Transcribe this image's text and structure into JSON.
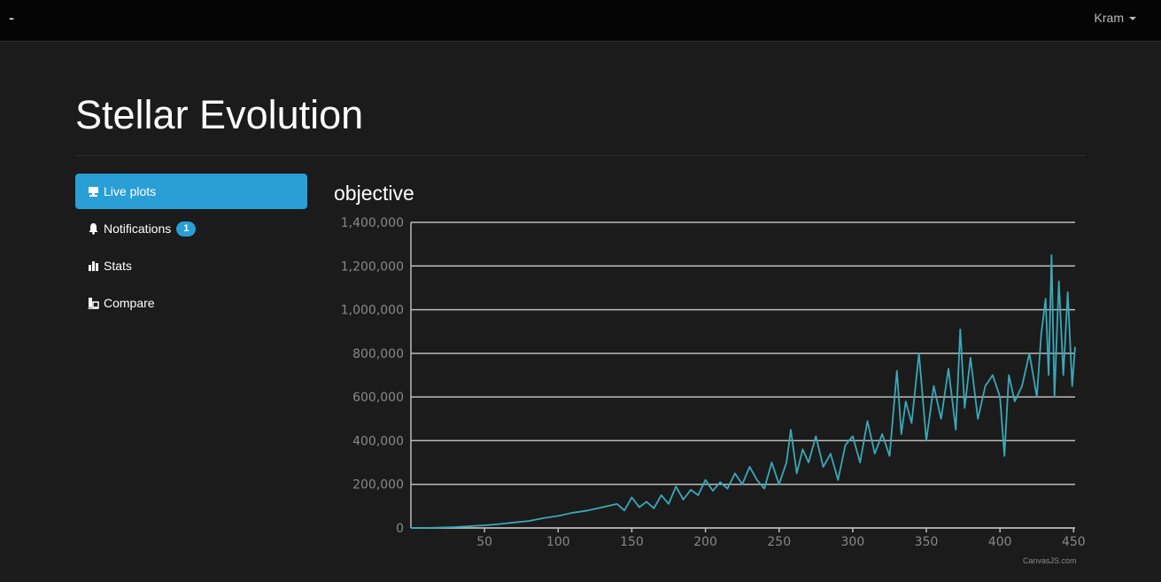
{
  "navbar": {
    "brand": "-",
    "user": "Kram"
  },
  "page": {
    "title": "Stellar Evolution"
  },
  "sidebar": {
    "items": [
      {
        "label": "Live plots",
        "icon": "monitor-icon",
        "active": true
      },
      {
        "label": "Notifications",
        "icon": "bell-icon",
        "badge": "1"
      },
      {
        "label": "Stats",
        "icon": "bar-chart-icon"
      },
      {
        "label": "Compare",
        "icon": "compare-icon"
      }
    ]
  },
  "colors": {
    "accent": "#2a9fd6",
    "series": "#3aa8b8",
    "grid": "#bbbbbb",
    "tick_label": "#888888"
  },
  "credit": "CanvasJS.com",
  "chart_data": {
    "type": "line",
    "title": "objective",
    "xlabel": "",
    "ylabel": "",
    "xlim": [
      0,
      451
    ],
    "ylim": [
      0,
      1400000
    ],
    "x_ticks": [
      "50",
      "100",
      "150",
      "200",
      "250",
      "300",
      "350",
      "400",
      "450"
    ],
    "y_ticks": [
      "0",
      "200,000",
      "400,000",
      "600,000",
      "800,000",
      "1,000,000",
      "1,200,000",
      "1,400,000"
    ],
    "grid": true,
    "legend": "none",
    "series": [
      {
        "x": [
          0,
          10,
          20,
          30,
          40,
          50,
          60,
          70,
          80,
          90,
          100,
          110,
          120,
          130,
          140,
          145,
          150,
          155,
          160,
          165,
          170,
          175,
          180,
          185,
          190,
          195,
          200,
          205,
          210,
          215,
          220,
          225,
          230,
          235,
          240,
          245,
          250,
          255,
          258,
          262,
          266,
          270,
          275,
          280,
          285,
          290,
          295,
          300,
          305,
          310,
          315,
          320,
          325,
          330,
          333,
          336,
          340,
          345,
          350,
          355,
          360,
          365,
          370,
          373,
          376,
          380,
          385,
          390,
          395,
          400,
          403,
          406,
          410,
          415,
          420,
          425,
          428,
          431,
          433,
          435,
          437,
          440,
          443,
          446,
          449,
          451
        ],
        "y": [
          0,
          0,
          2000,
          4000,
          8000,
          12000,
          18000,
          25000,
          32000,
          45000,
          55000,
          70000,
          80000,
          95000,
          110000,
          80000,
          140000,
          95000,
          120000,
          90000,
          150000,
          110000,
          190000,
          130000,
          175000,
          150000,
          220000,
          170000,
          210000,
          180000,
          250000,
          200000,
          280000,
          220000,
          180000,
          300000,
          200000,
          300000,
          450000,
          250000,
          360000,
          300000,
          420000,
          280000,
          340000,
          220000,
          380000,
          420000,
          300000,
          490000,
          340000,
          430000,
          330000,
          720000,
          430000,
          580000,
          480000,
          800000,
          400000,
          650000,
          500000,
          730000,
          450000,
          910000,
          550000,
          780000,
          500000,
          650000,
          700000,
          600000,
          330000,
          700000,
          580000,
          650000,
          800000,
          600000,
          890000,
          1050000,
          700000,
          1250000,
          600000,
          1130000,
          700000,
          1080000,
          650000,
          830000
        ]
      }
    ]
  }
}
